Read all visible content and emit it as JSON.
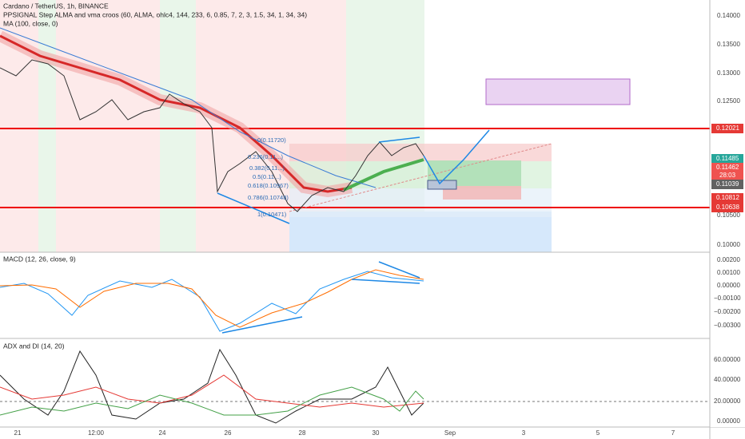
{
  "header": {
    "title": "Cardano / TetherUS, 1h, BINANCE",
    "indicator": "PPSIGNAL Step ALMA and vma croos (60, ALMA, ohlc4, 144, 233, 6, 0.85, 7, 2, 3, 1.5, 34, 1, 34, 34)",
    "ma": "MA (100, close, 0)"
  },
  "price_axis": {
    "labels": [
      "0.14000",
      "0.13500",
      "0.13000",
      "0.12500",
      "0.10500",
      "0.10000"
    ],
    "tags": [
      "0.12021",
      "0.11485",
      "0.11462",
      "28:03",
      "0.11039",
      "0.10812",
      "0.10638"
    ]
  },
  "fib_labels": [
    "0(0.11720)",
    "0.236(0.11...)",
    "0.382(0.11...)",
    "0.5(0.11...)",
    "0.618(0.10967)",
    "0.786(0.10748)",
    "1(0.10471)"
  ],
  "macd": {
    "title": "MACD (12, 26, close, 9)",
    "labels": [
      "0.00200",
      "0.00100",
      "0.00000",
      "−0.00100",
      "−0.00200",
      "−0.00300"
    ]
  },
  "adx": {
    "title": "ADX and DI (14, 20)",
    "labels": [
      "60.00000",
      "40.00000",
      "20.00000",
      "0.00000"
    ]
  },
  "time_axis": {
    "labels": [
      "21",
      "12:00",
      "24",
      "26",
      "28",
      "30",
      "Sep",
      "3",
      "5",
      "7"
    ]
  }
}
